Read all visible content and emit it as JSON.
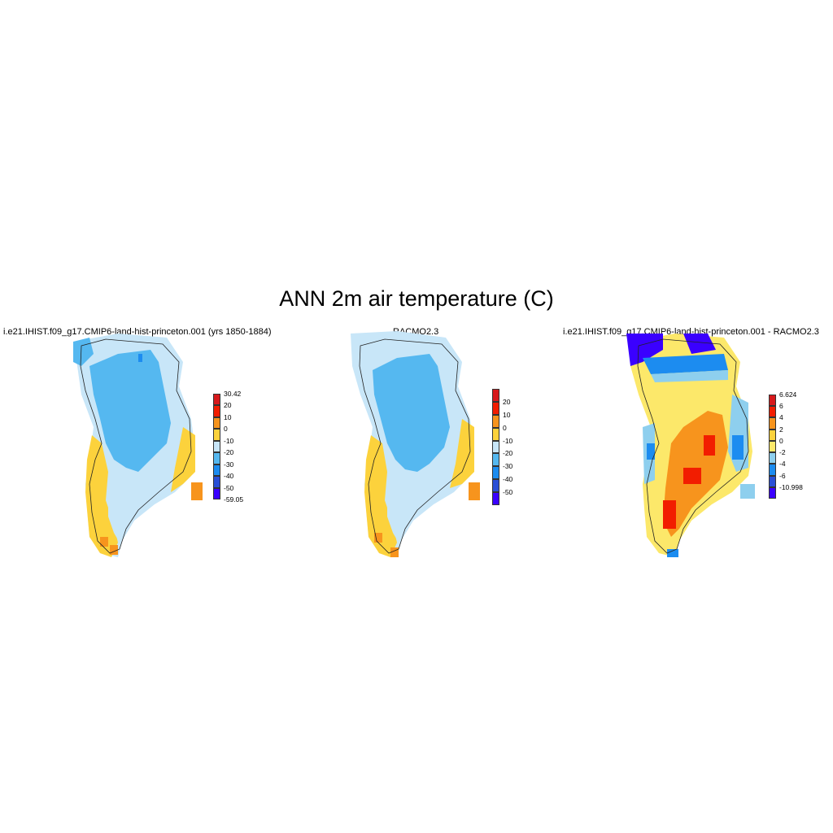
{
  "title": "ANN 2m air temperature (C)",
  "colors": {
    "abs_scale": [
      "#3a00ff",
      "#2a4fd6",
      "#1c8cf0",
      "#55b8f0",
      "#c8e6f8",
      "#fcd23c",
      "#f7941d",
      "#f21d00",
      "#d7191c"
    ],
    "diff_scale": [
      "#3a00ff",
      "#2a4fd6",
      "#1c8cf0",
      "#8ecfee",
      "#fce86a",
      "#fcd23c",
      "#f7941d",
      "#f21d00",
      "#d7191c"
    ]
  },
  "panels": [
    {
      "title": "i.e21.IHIST.f09_g17.CMIP6-land-hist-princeton.001 (yrs 1850-1884)",
      "colorbar": {
        "labels": [
          "30.42",
          "20",
          "10",
          "0",
          "-10",
          "-20",
          "-30",
          "-40",
          "-50",
          "-59.05"
        ],
        "colors": [
          "#d7191c",
          "#f21d00",
          "#f7941d",
          "#fcd23c",
          "#c8e6f8",
          "#55b8f0",
          "#1c8cf0",
          "#2a4fd6",
          "#3a00ff"
        ]
      }
    },
    {
      "title": "RACMO2.3",
      "colorbar": {
        "labels": [
          "20",
          "10",
          "0",
          "-10",
          "-20",
          "-30",
          "-40",
          "-50"
        ],
        "colors": [
          "#d7191c",
          "#f21d00",
          "#f7941d",
          "#fcd23c",
          "#c8e6f8",
          "#55b8f0",
          "#1c8cf0",
          "#2a4fd6",
          "#3a00ff"
        ]
      }
    },
    {
      "title": "i.e21.IHIST.f09_g17.CMIP6-land-hist-princeton.001 - RACMO2.3",
      "colorbar": {
        "labels": [
          "6.624",
          "6",
          "4",
          "2",
          "0",
          "-2",
          "-4",
          "-6",
          "-10.998"
        ],
        "colors": [
          "#d7191c",
          "#f21d00",
          "#f7941d",
          "#fcd23c",
          "#fce86a",
          "#8ecfee",
          "#1c8cf0",
          "#2a4fd6",
          "#3a00ff"
        ]
      }
    }
  ]
}
